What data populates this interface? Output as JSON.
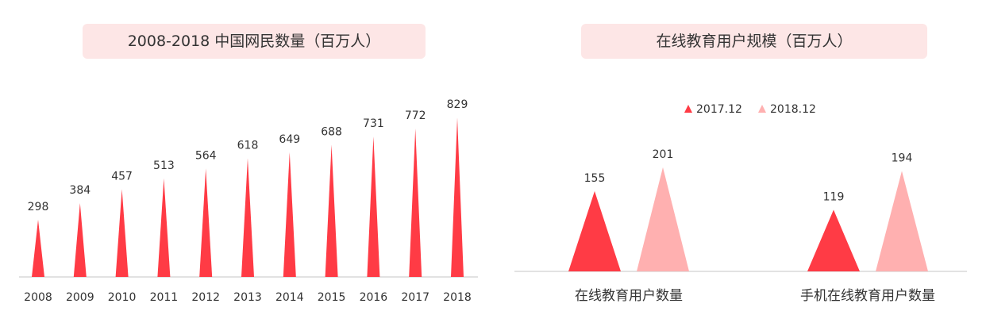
{
  "colors": {
    "primary": "#ff3b45",
    "secondary": "#ffb0b0",
    "title_bg": "#fde6e6",
    "axis": "#d9d9d9",
    "text": "#333333"
  },
  "chart_data": [
    {
      "type": "bar",
      "title": "2008-2018 中国网民数量（百万人）",
      "categories": [
        "2008",
        "2009",
        "2010",
        "2011",
        "2012",
        "2013",
        "2014",
        "2015",
        "2016",
        "2017",
        "2018"
      ],
      "values": [
        298,
        384,
        457,
        513,
        564,
        618,
        649,
        688,
        731,
        772,
        829
      ],
      "ylim": [
        0,
        830
      ],
      "grid": false,
      "legend": "none"
    },
    {
      "type": "bar",
      "title": "在线教育用户规模（百万人）",
      "categories": [
        "在线教育用户数量",
        "手机在线教育用户数量"
      ],
      "series": [
        {
          "name": "2017.12",
          "values": [
            155,
            119
          ]
        },
        {
          "name": "2018.12",
          "values": [
            201,
            194
          ]
        }
      ],
      "ylim": [
        0,
        210
      ],
      "grid": false,
      "legend": "top"
    }
  ]
}
